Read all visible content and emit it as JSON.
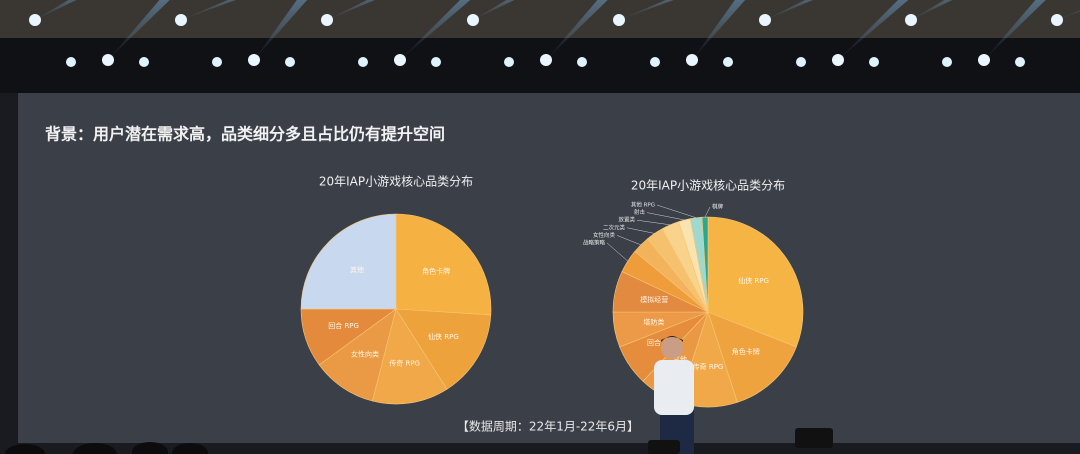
{
  "slide": {
    "title": "背景：用户潜在需求高，品类细分多且占比仍有提升空间",
    "footnote": "【数据周期：22年1月-22年6月】"
  },
  "chart_data": [
    {
      "type": "pie",
      "title": "20年IAP小游戏核心品类分布",
      "categories": [
        "角色卡牌",
        "仙侠 RPG",
        "传奇 RPG",
        "女性向类",
        "回合 RPG",
        "其他"
      ],
      "values": [
        26,
        15,
        13,
        11,
        10,
        25
      ],
      "colors": [
        "#f5b142",
        "#eea23c",
        "#f0a849",
        "#ea9a45",
        "#e38a3c",
        "#c8d8ef"
      ]
    },
    {
      "type": "pie",
      "title": "20年IAP小游戏核心品类分布",
      "categories": [
        "仙侠 RPG",
        "角色卡牌",
        "传奇 RPG",
        "其他",
        "回合 RPG",
        "塔防类",
        "模拟经营",
        "战略策略",
        "女性向类",
        "二次元类",
        "放置类",
        "射击",
        "其他 RPG",
        "棋牌"
      ],
      "values": [
        31,
        14,
        10,
        7,
        7,
        6,
        7,
        4,
        3,
        3,
        3,
        2,
        2,
        1
      ],
      "colors": [
        "#f6b445",
        "#efa33e",
        "#f0a849",
        "#ea9843",
        "#e68d3d",
        "#ec9a47",
        "#e28a3f",
        "#ef9d3a",
        "#f3b25c",
        "#f6c16e",
        "#f9d28b",
        "#fbe3b0",
        "#9fd8cf",
        "#2aa78f"
      ]
    }
  ]
}
